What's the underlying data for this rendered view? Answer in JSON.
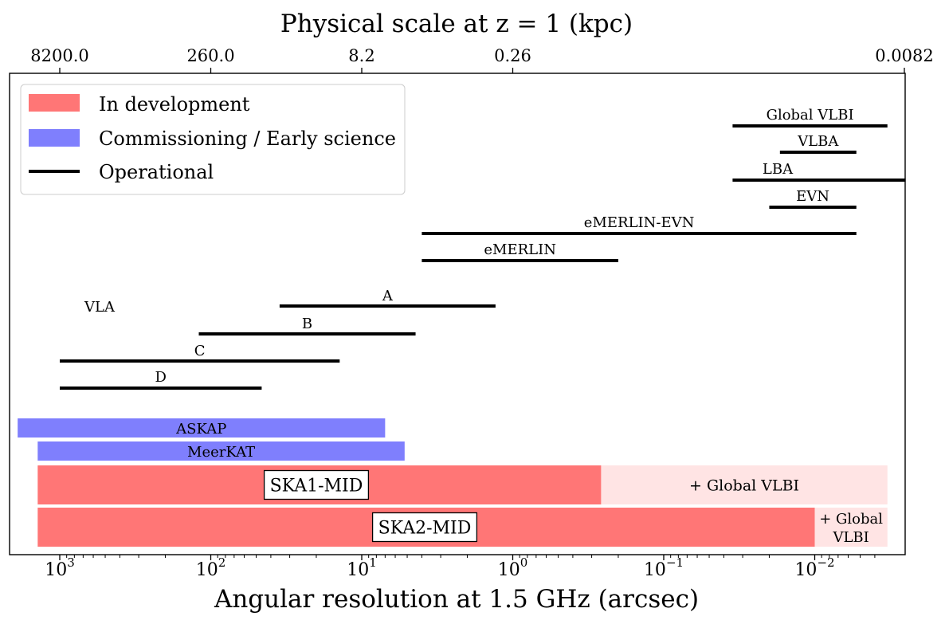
{
  "chart_data": {
    "type": "range-bar",
    "title": "",
    "top_axis_label": "Physical scale at z = 1 (kpc)",
    "top_ticks": [
      "8200.0",
      "260.0",
      "8.2",
      "0.26",
      "0.0082"
    ],
    "xlabel": "Angular resolution at 1.5 GHz (arcsec)",
    "ylabel": "",
    "x_scale": "log-reversed",
    "xlim": [
      1800,
      0.0031
    ],
    "x_major_ticks": [
      {
        "value": 1000,
        "mantissa": "10",
        "exponent": "3"
      },
      {
        "value": 100,
        "mantissa": "10",
        "exponent": "2"
      },
      {
        "value": 10,
        "mantissa": "10",
        "exponent": "1"
      },
      {
        "value": 1,
        "mantissa": "10",
        "exponent": "0"
      },
      {
        "value": 0.1,
        "mantissa": "10",
        "exponent": "−1"
      },
      {
        "value": 0.01,
        "mantissa": "10",
        "exponent": "−2"
      }
    ],
    "legend": {
      "placement": "top-left",
      "entries": [
        {
          "label": "In development",
          "color": "#ff7676"
        },
        {
          "label": "Commissioning / Early science",
          "color": "#7f7ffd"
        },
        {
          "label": "Operational",
          "color": "#000000"
        }
      ]
    },
    "group_label": "VLA",
    "operational": [
      {
        "name": "Global VLBI",
        "range": [
          0.035,
          0.0033
        ]
      },
      {
        "name": "VLBA",
        "range": [
          0.017,
          0.0053
        ]
      },
      {
        "name": "LBA",
        "range": [
          0.035,
          0.0025
        ]
      },
      {
        "name": "EVN",
        "range": [
          0.02,
          0.0053
        ]
      },
      {
        "name": "eMERLIN-EVN",
        "range": [
          4,
          0.0053
        ]
      },
      {
        "name": "eMERLIN",
        "range": [
          4,
          0.2
        ]
      },
      {
        "name": "A",
        "range": [
          35,
          1.3
        ]
      },
      {
        "name": "B",
        "range": [
          120,
          4.4
        ]
      },
      {
        "name": "C",
        "range": [
          1000,
          14
        ]
      },
      {
        "name": "D",
        "range": [
          1000,
          46
        ]
      }
    ],
    "commissioning": [
      {
        "name": "ASKAP",
        "range": [
          1900,
          7
        ]
      },
      {
        "name": "MeerKAT",
        "range": [
          1400,
          5.2
        ]
      }
    ],
    "development": [
      {
        "name": "SKA1-MID",
        "range": [
          1400,
          0.26
        ],
        "extension_label": "+ Global VLBI",
        "extension_range": [
          0.26,
          0.0033
        ]
      },
      {
        "name": "SKA2-MID",
        "range": [
          1400,
          0.01
        ],
        "extension_label": "+ Global VLBI",
        "extension_range": [
          0.01,
          0.0033
        ]
      }
    ],
    "colors": {
      "development": "#ff7676",
      "development_extension": "#ffe4e4",
      "commissioning": "#7f7ffd",
      "operational": "#000000"
    }
  }
}
